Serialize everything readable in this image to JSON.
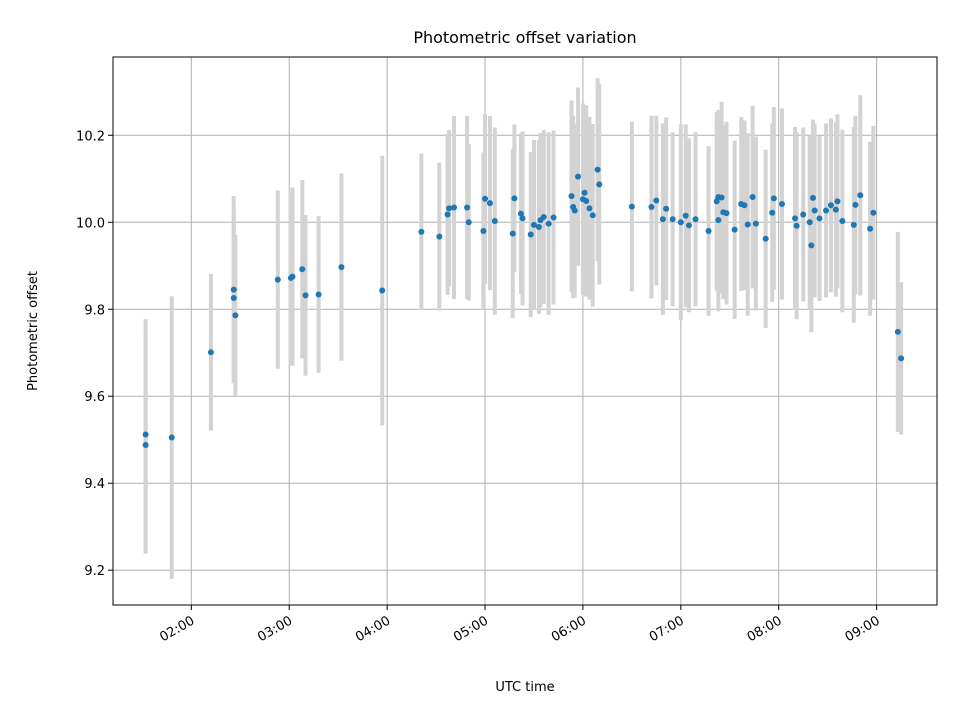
{
  "chart_data": {
    "type": "scatter",
    "title": "Photometric offset variation",
    "xlabel": "UTC time",
    "ylabel": "Photometric offset",
    "xlim": [
      "01:12",
      "09:37"
    ],
    "ylim": [
      9.12,
      10.38
    ],
    "x_ticks": [
      "02:00",
      "03:00",
      "04:00",
      "05:00",
      "06:00",
      "07:00",
      "08:00",
      "09:00"
    ],
    "y_ticks": [
      9.2,
      9.4,
      9.6,
      9.8,
      10.0,
      10.2
    ],
    "grid": true,
    "colors": {
      "points": "#1f77b4",
      "errorbars": "#d3d3d3",
      "grid": "#b0b0b0"
    },
    "points": [
      {
        "t": "01:32",
        "y": 9.512,
        "yerr": 0.265
      },
      {
        "t": "01:32",
        "y": 9.488,
        "yerr": 0.25
      },
      {
        "t": "01:48",
        "y": 9.505,
        "yerr": 0.325
      },
      {
        "t": "02:12",
        "y": 9.701,
        "yerr": 0.18
      },
      {
        "t": "02:26",
        "y": 9.845,
        "yerr": 0.215
      },
      {
        "t": "02:26",
        "y": 9.826,
        "yerr": 0.195
      },
      {
        "t": "02:27",
        "y": 9.786,
        "yerr": 0.185
      },
      {
        "t": "02:53",
        "y": 9.868,
        "yerr": 0.205
      },
      {
        "t": "03:01",
        "y": 9.872,
        "yerr": 0.2
      },
      {
        "t": "03:02",
        "y": 9.875,
        "yerr": 0.205
      },
      {
        "t": "03:08",
        "y": 9.892,
        "yerr": 0.205
      },
      {
        "t": "03:10",
        "y": 9.832,
        "yerr": 0.185
      },
      {
        "t": "03:18",
        "y": 9.834,
        "yerr": 0.18
      },
      {
        "t": "03:32",
        "y": 9.897,
        "yerr": 0.215
      },
      {
        "t": "03:57",
        "y": 9.843,
        "yerr": 0.31
      },
      {
        "t": "04:21",
        "y": 9.978,
        "yerr": 0.18
      },
      {
        "t": "04:32",
        "y": 9.967,
        "yerr": 0.17
      },
      {
        "t": "04:37",
        "y": 10.018,
        "yerr": 0.185
      },
      {
        "t": "04:38",
        "y": 10.032,
        "yerr": 0.18
      },
      {
        "t": "04:41",
        "y": 10.034,
        "yerr": 0.21
      },
      {
        "t": "04:49",
        "y": 10.034,
        "yerr": 0.21
      },
      {
        "t": "04:50",
        "y": 10.0,
        "yerr": 0.18
      },
      {
        "t": "04:59",
        "y": 9.98,
        "yerr": 0.18
      },
      {
        "t": "05:00",
        "y": 10.054,
        "yerr": 0.195
      },
      {
        "t": "05:03",
        "y": 10.044,
        "yerr": 0.2
      },
      {
        "t": "05:06",
        "y": 10.003,
        "yerr": 0.215
      },
      {
        "t": "05:17",
        "y": 9.974,
        "yerr": 0.195
      },
      {
        "t": "05:18",
        "y": 10.055,
        "yerr": 0.17
      },
      {
        "t": "05:22",
        "y": 10.02,
        "yerr": 0.185
      },
      {
        "t": "05:23",
        "y": 10.009,
        "yerr": 0.2
      },
      {
        "t": "05:28",
        "y": 9.972,
        "yerr": 0.19
      },
      {
        "t": "05:30",
        "y": 9.994,
        "yerr": 0.195
      },
      {
        "t": "05:33",
        "y": 9.989,
        "yerr": 0.2
      },
      {
        "t": "05:34",
        "y": 10.005,
        "yerr": 0.2
      },
      {
        "t": "05:36",
        "y": 10.012,
        "yerr": 0.2
      },
      {
        "t": "05:39",
        "y": 9.997,
        "yerr": 0.21
      },
      {
        "t": "05:42",
        "y": 10.011,
        "yerr": 0.2
      },
      {
        "t": "05:53",
        "y": 10.06,
        "yerr": 0.22
      },
      {
        "t": "05:54",
        "y": 10.035,
        "yerr": 0.21
      },
      {
        "t": "05:55",
        "y": 10.027,
        "yerr": 0.2
      },
      {
        "t": "05:57",
        "y": 10.105,
        "yerr": 0.205
      },
      {
        "t": "06:00",
        "y": 10.053,
        "yerr": 0.22
      },
      {
        "t": "06:01",
        "y": 10.068,
        "yerr": 0.2
      },
      {
        "t": "06:02",
        "y": 10.049,
        "yerr": 0.22
      },
      {
        "t": "06:04",
        "y": 10.032,
        "yerr": 0.21
      },
      {
        "t": "06:06",
        "y": 10.016,
        "yerr": 0.21
      },
      {
        "t": "06:09",
        "y": 10.121,
        "yerr": 0.21
      },
      {
        "t": "06:10",
        "y": 10.087,
        "yerr": 0.23
      },
      {
        "t": "06:30",
        "y": 10.036,
        "yerr": 0.195
      },
      {
        "t": "06:42",
        "y": 10.035,
        "yerr": 0.21
      },
      {
        "t": "06:45",
        "y": 10.05,
        "yerr": 0.195
      },
      {
        "t": "06:49",
        "y": 10.007,
        "yerr": 0.22
      },
      {
        "t": "06:51",
        "y": 10.031,
        "yerr": 0.21
      },
      {
        "t": "06:55",
        "y": 10.007,
        "yerr": 0.2
      },
      {
        "t": "07:00",
        "y": 10.0,
        "yerr": 0.225
      },
      {
        "t": "07:03",
        "y": 10.015,
        "yerr": 0.21
      },
      {
        "t": "07:05",
        "y": 9.993,
        "yerr": 0.2
      },
      {
        "t": "07:09",
        "y": 10.007,
        "yerr": 0.2
      },
      {
        "t": "07:17",
        "y": 9.98,
        "yerr": 0.195
      },
      {
        "t": "07:22",
        "y": 10.048,
        "yerr": 0.205
      },
      {
        "t": "07:23",
        "y": 10.058,
        "yerr": 0.2
      },
      {
        "t": "07:23",
        "y": 10.005,
        "yerr": 0.21
      },
      {
        "t": "07:25",
        "y": 10.057,
        "yerr": 0.22
      },
      {
        "t": "07:26",
        "y": 10.023,
        "yerr": 0.2
      },
      {
        "t": "07:28",
        "y": 10.021,
        "yerr": 0.21
      },
      {
        "t": "07:33",
        "y": 9.983,
        "yerr": 0.205
      },
      {
        "t": "07:37",
        "y": 10.042,
        "yerr": 0.2
      },
      {
        "t": "07:39",
        "y": 10.039,
        "yerr": 0.195
      },
      {
        "t": "07:41",
        "y": 9.995,
        "yerr": 0.21
      },
      {
        "t": "07:44",
        "y": 10.058,
        "yerr": 0.21
      },
      {
        "t": "07:46",
        "y": 9.997,
        "yerr": 0.2
      },
      {
        "t": "07:52",
        "y": 9.962,
        "yerr": 0.205
      },
      {
        "t": "07:56",
        "y": 10.022,
        "yerr": 0.205
      },
      {
        "t": "07:57",
        "y": 10.055,
        "yerr": 0.21
      },
      {
        "t": "08:02",
        "y": 10.042,
        "yerr": 0.22
      },
      {
        "t": "08:10",
        "y": 10.009,
        "yerr": 0.21
      },
      {
        "t": "08:11",
        "y": 9.992,
        "yerr": 0.215
      },
      {
        "t": "08:15",
        "y": 10.018,
        "yerr": 0.2
      },
      {
        "t": "08:19",
        "y": 10.0,
        "yerr": 0.2
      },
      {
        "t": "08:20",
        "y": 9.947,
        "yerr": 0.2
      },
      {
        "t": "08:21",
        "y": 10.056,
        "yerr": 0.18
      },
      {
        "t": "08:22",
        "y": 10.027,
        "yerr": 0.2
      },
      {
        "t": "08:25",
        "y": 10.009,
        "yerr": 0.19
      },
      {
        "t": "08:29",
        "y": 10.027,
        "yerr": 0.2
      },
      {
        "t": "08:32",
        "y": 10.039,
        "yerr": 0.2
      },
      {
        "t": "08:35",
        "y": 10.029,
        "yerr": 0.2
      },
      {
        "t": "08:36",
        "y": 10.048,
        "yerr": 0.2
      },
      {
        "t": "08:39",
        "y": 10.003,
        "yerr": 0.21
      },
      {
        "t": "08:46",
        "y": 9.994,
        "yerr": 0.225
      },
      {
        "t": "08:47",
        "y": 10.04,
        "yerr": 0.205
      },
      {
        "t": "08:50",
        "y": 10.062,
        "yerr": 0.23
      },
      {
        "t": "08:56",
        "y": 9.985,
        "yerr": 0.2
      },
      {
        "t": "08:58",
        "y": 10.022,
        "yerr": 0.2
      },
      {
        "t": "09:13",
        "y": 9.748,
        "yerr": 0.23
      },
      {
        "t": "09:15",
        "y": 9.687,
        "yerr": 0.175
      }
    ]
  }
}
